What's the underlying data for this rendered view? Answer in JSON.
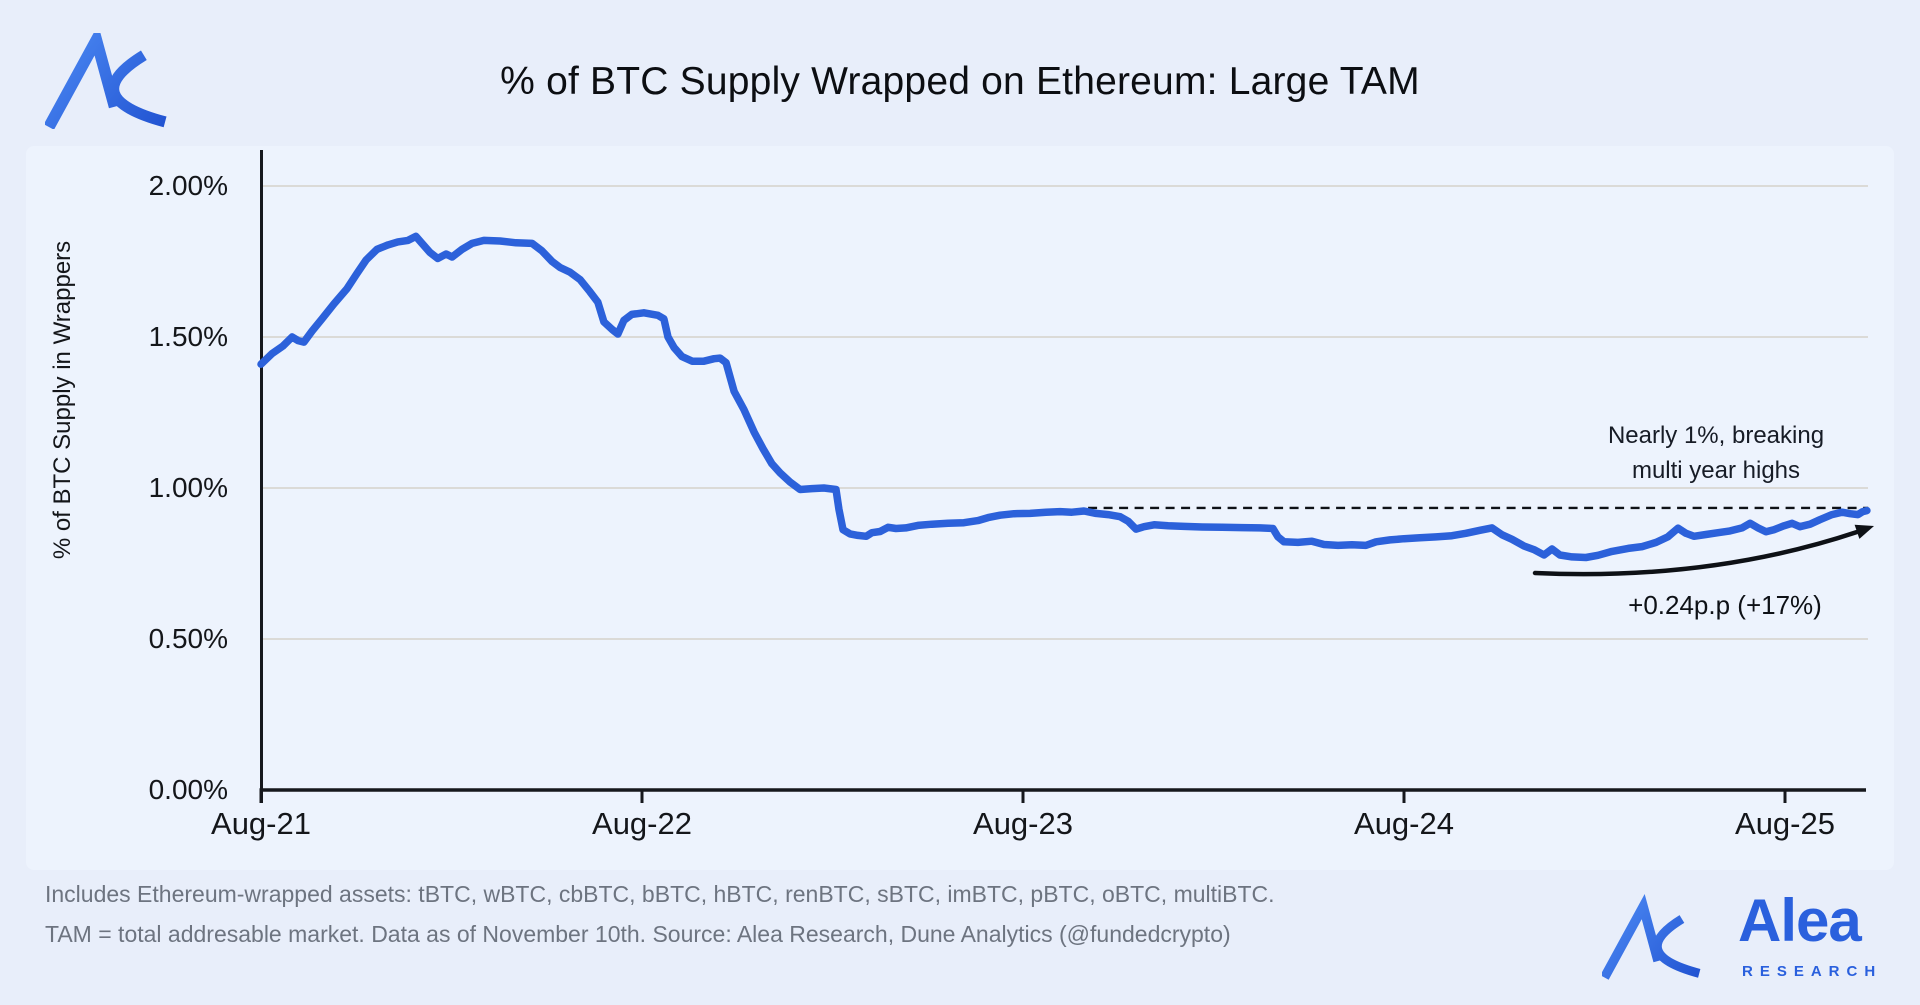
{
  "chart_data": {
    "type": "line",
    "title": "% of BTC Supply Wrapped on Ethereum: Large TAM",
    "ylabel": "% of BTC Supply in Wrappers",
    "xlabel": "",
    "x_unit": "months since Aug-2021",
    "xlim": [
      0,
      50.7
    ],
    "ylim": [
      0,
      2.0
    ],
    "grid": "horizontal",
    "legend": "none",
    "xticks": [
      {
        "label": "Aug-21",
        "m": 0
      },
      {
        "label": "Aug-22",
        "m": 12
      },
      {
        "label": "Aug-23",
        "m": 24
      },
      {
        "label": "Aug-24",
        "m": 36
      },
      {
        "label": "Aug-25",
        "m": 48
      }
    ],
    "yticks": {
      "values": [
        0,
        0.5,
        1.0,
        1.5,
        2.0
      ],
      "labels": [
        "0.00%",
        "0.50%",
        "1.00%",
        "1.50%",
        "2.00%"
      ]
    },
    "reference_line": {
      "style": "dashed",
      "color": "#0e1116",
      "value": 0.934,
      "from_m": 26.05,
      "to_m": 50.62
    },
    "annotations": [
      {
        "id": "highs",
        "text": "Nearly 1%, breaking multi year highs"
      },
      {
        "id": "delta",
        "text": "+0.24p.p (+17%)"
      }
    ],
    "series": [
      {
        "name": "% of BTC Supply in Wrappers",
        "color": "#2c61da",
        "points": [
          [
            0,
            1.41
          ],
          [
            0.35,
            1.445
          ],
          [
            0.69,
            1.47
          ],
          [
            0.98,
            1.5
          ],
          [
            1.17,
            1.488
          ],
          [
            1.35,
            1.483
          ],
          [
            1.61,
            1.52
          ],
          [
            1.92,
            1.56
          ],
          [
            2.3,
            1.61
          ],
          [
            2.71,
            1.66
          ],
          [
            3.02,
            1.71
          ],
          [
            3.31,
            1.755
          ],
          [
            3.65,
            1.79
          ],
          [
            4.0,
            1.805
          ],
          [
            4.31,
            1.815
          ],
          [
            4.63,
            1.82
          ],
          [
            4.88,
            1.833
          ],
          [
            5.07,
            1.81
          ],
          [
            5.32,
            1.78
          ],
          [
            5.57,
            1.76
          ],
          [
            5.83,
            1.775
          ],
          [
            6.02,
            1.765
          ],
          [
            6.33,
            1.79
          ],
          [
            6.65,
            1.81
          ],
          [
            7.02,
            1.82
          ],
          [
            7.53,
            1.818
          ],
          [
            8.03,
            1.812
          ],
          [
            8.54,
            1.81
          ],
          [
            8.85,
            1.785
          ],
          [
            9.17,
            1.75
          ],
          [
            9.42,
            1.73
          ],
          [
            9.73,
            1.715
          ],
          [
            10.05,
            1.69
          ],
          [
            10.36,
            1.65
          ],
          [
            10.61,
            1.615
          ],
          [
            10.8,
            1.55
          ],
          [
            11.06,
            1.525
          ],
          [
            11.24,
            1.51
          ],
          [
            11.43,
            1.555
          ],
          [
            11.68,
            1.575
          ],
          [
            12.06,
            1.58
          ],
          [
            12.5,
            1.572
          ],
          [
            12.69,
            1.56
          ],
          [
            12.82,
            1.5
          ],
          [
            13.01,
            1.465
          ],
          [
            13.26,
            1.435
          ],
          [
            13.58,
            1.42
          ],
          [
            13.95,
            1.42
          ],
          [
            14.27,
            1.428
          ],
          [
            14.46,
            1.43
          ],
          [
            14.65,
            1.415
          ],
          [
            14.9,
            1.32
          ],
          [
            15.21,
            1.26
          ],
          [
            15.53,
            1.185
          ],
          [
            15.81,
            1.13
          ],
          [
            16.09,
            1.08
          ],
          [
            16.35,
            1.05
          ],
          [
            16.66,
            1.02
          ],
          [
            16.98,
            0.995
          ],
          [
            17.35,
            0.998
          ],
          [
            17.73,
            1.0
          ],
          [
            18.11,
            0.995
          ],
          [
            18.2,
            0.93
          ],
          [
            18.33,
            0.862
          ],
          [
            18.55,
            0.848
          ],
          [
            18.8,
            0.843
          ],
          [
            19.06,
            0.84
          ],
          [
            19.24,
            0.852
          ],
          [
            19.5,
            0.856
          ],
          [
            19.75,
            0.87
          ],
          [
            20.0,
            0.866
          ],
          [
            20.31,
            0.868
          ],
          [
            20.69,
            0.876
          ],
          [
            21.13,
            0.88
          ],
          [
            21.64,
            0.883
          ],
          [
            22.14,
            0.885
          ],
          [
            22.58,
            0.892
          ],
          [
            22.9,
            0.902
          ],
          [
            23.28,
            0.91
          ],
          [
            23.72,
            0.915
          ],
          [
            24.22,
            0.916
          ],
          [
            24.72,
            0.92
          ],
          [
            25.17,
            0.922
          ],
          [
            25.54,
            0.92
          ],
          [
            25.92,
            0.924
          ],
          [
            26.3,
            0.916
          ],
          [
            26.68,
            0.912
          ],
          [
            27.06,
            0.905
          ],
          [
            27.31,
            0.89
          ],
          [
            27.56,
            0.864
          ],
          [
            27.81,
            0.872
          ],
          [
            28.13,
            0.878
          ],
          [
            28.57,
            0.875
          ],
          [
            29.07,
            0.873
          ],
          [
            29.64,
            0.871
          ],
          [
            30.27,
            0.87
          ],
          [
            30.9,
            0.869
          ],
          [
            31.46,
            0.868
          ],
          [
            31.87,
            0.866
          ],
          [
            32.03,
            0.838
          ],
          [
            32.22,
            0.822
          ],
          [
            32.66,
            0.82
          ],
          [
            33.1,
            0.824
          ],
          [
            33.48,
            0.813
          ],
          [
            33.92,
            0.81
          ],
          [
            34.36,
            0.812
          ],
          [
            34.8,
            0.81
          ],
          [
            35.12,
            0.822
          ],
          [
            35.56,
            0.828
          ],
          [
            36.0,
            0.832
          ],
          [
            36.5,
            0.835
          ],
          [
            37.01,
            0.838
          ],
          [
            37.51,
            0.842
          ],
          [
            37.95,
            0.85
          ],
          [
            38.39,
            0.86
          ],
          [
            38.77,
            0.868
          ],
          [
            39.09,
            0.845
          ],
          [
            39.4,
            0.83
          ],
          [
            39.78,
            0.808
          ],
          [
            40.09,
            0.796
          ],
          [
            40.41,
            0.778
          ],
          [
            40.66,
            0.798
          ],
          [
            40.91,
            0.778
          ],
          [
            41.29,
            0.772
          ],
          [
            41.73,
            0.77
          ],
          [
            42.11,
            0.777
          ],
          [
            42.55,
            0.79
          ],
          [
            43.06,
            0.8
          ],
          [
            43.5,
            0.806
          ],
          [
            43.94,
            0.82
          ],
          [
            44.31,
            0.838
          ],
          [
            44.63,
            0.867
          ],
          [
            44.88,
            0.85
          ],
          [
            45.13,
            0.84
          ],
          [
            45.51,
            0.846
          ],
          [
            45.89,
            0.852
          ],
          [
            46.27,
            0.858
          ],
          [
            46.65,
            0.868
          ],
          [
            46.9,
            0.883
          ],
          [
            47.15,
            0.868
          ],
          [
            47.4,
            0.855
          ],
          [
            47.65,
            0.862
          ],
          [
            47.97,
            0.875
          ],
          [
            48.22,
            0.883
          ],
          [
            48.47,
            0.872
          ],
          [
            48.79,
            0.88
          ],
          [
            49.1,
            0.895
          ],
          [
            49.48,
            0.912
          ],
          [
            49.8,
            0.92
          ],
          [
            50.05,
            0.915
          ],
          [
            50.3,
            0.912
          ],
          [
            50.45,
            0.922
          ],
          [
            50.58,
            0.925
          ]
        ]
      }
    ]
  },
  "footer": {
    "line1": "Includes Ethereum-wrapped assets: tBTC, wBTC, cbBTC, bBTC, hBTC, renBTC, sBTC, imBTC, pBTC, oBTC, multiBTC.",
    "line2": "TAM = total addresable market. Data as of November 10th. Source: Alea Research, Dune Analytics (@fundedcrypto)"
  },
  "brand": {
    "wordmark": "Alea",
    "subtitle": "RESEARCH",
    "logo_icon": "alea-a-swoosh"
  },
  "colors": {
    "background": "#e8eefa",
    "panel": "#edf3fd",
    "grid": "#dbdad7",
    "axis": "#16181d",
    "line": "#2c61da",
    "annotation_ink": "#0e1116",
    "footer_text": "#6d7480",
    "brand_blue": "#2a60dd",
    "logo_gradient_start": "#4a87f2",
    "logo_gradient_end": "#2254d2"
  }
}
